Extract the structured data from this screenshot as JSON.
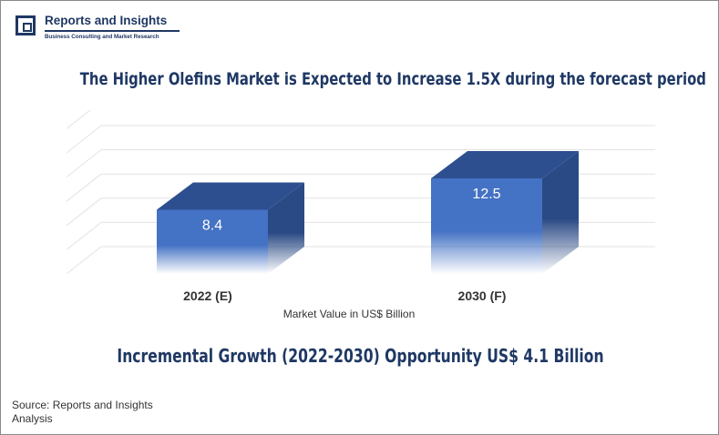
{
  "brand": {
    "name": "Reports and Insights",
    "tagline": "Business Consulting and Market Research"
  },
  "title": "The Higher Olefins Market is Expected to Increase 1.5X during the forecast period",
  "subtitle": "Incremental Growth (2022-2030) Opportunity US$ 4.1 Billion",
  "source": "Source: Reports and Insights Analysis",
  "colors": {
    "bar_front": "#4472c4",
    "bar_top": "#2e4f8f",
    "bar_side": "#2a4a85",
    "title": "#1f3864"
  },
  "chart_data": {
    "type": "bar",
    "categories": [
      "2022 (E)",
      "2030 (F)"
    ],
    "values": [
      8.4,
      12.5
    ],
    "data_labels": [
      "8.4",
      "12.5"
    ],
    "xlabel": "Market Value in US$ Billion",
    "ylabel": "",
    "ylim": [
      0,
      15
    ],
    "grid": true,
    "style": "3d"
  }
}
